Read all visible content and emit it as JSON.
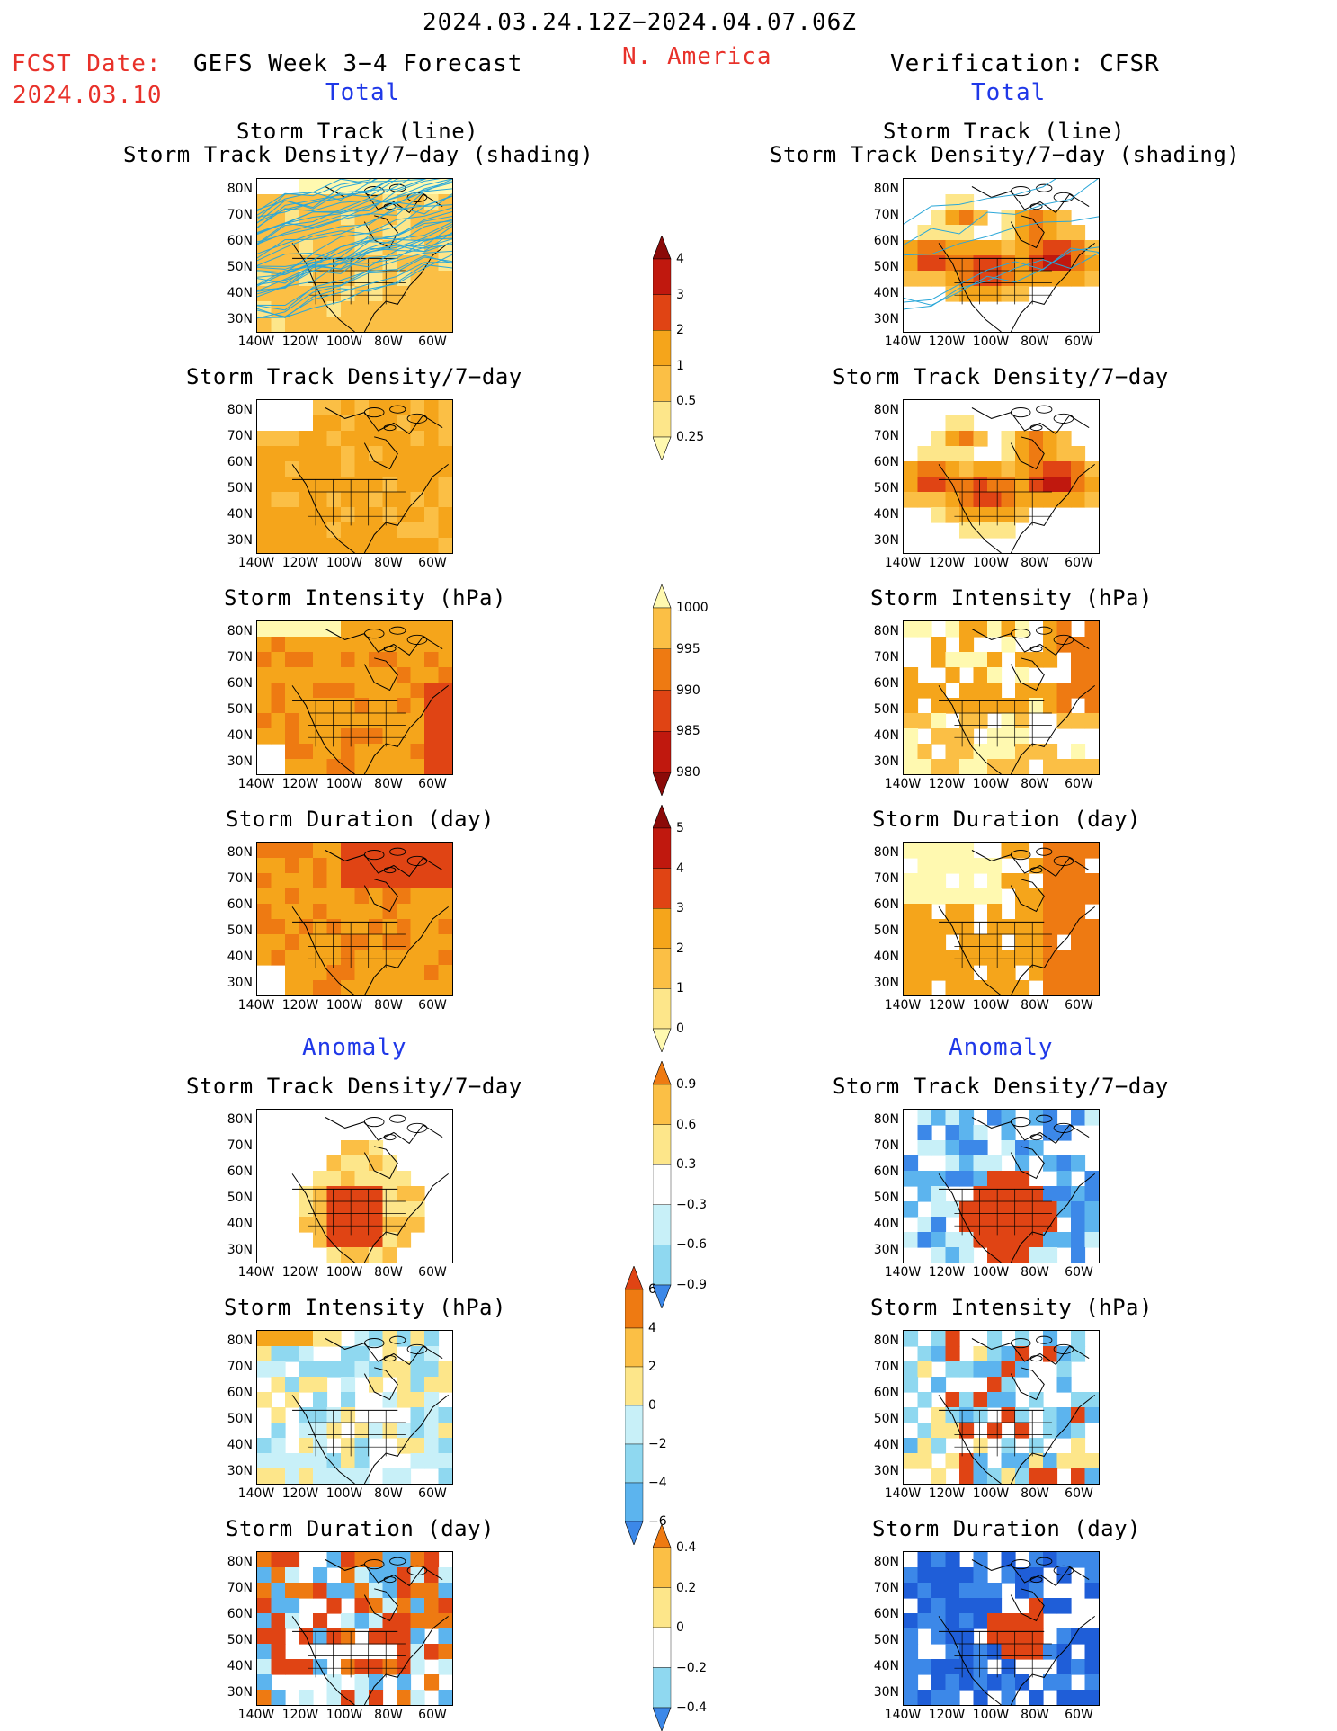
{
  "header": {
    "date_range": "2024.03.24.12Z−2024.04.07.06Z",
    "fcst_label": "FCST Date:",
    "fcst_date": "2024.03.10",
    "left_title": "GEFS Week 3−4 Forecast",
    "region": "N. America",
    "right_title": "Verification: CFSR",
    "total_left": "Total",
    "total_right": "Total",
    "anomaly_left": "Anomaly",
    "anomaly_right": "Anomaly"
  },
  "panels": {
    "track_line": "Storm Track (line)",
    "track_density_shading": "Storm Track Density/7−day (shading)",
    "track_density": "Storm Track Density/7−day",
    "intensity": "Storm Intensity (hPa)",
    "duration": "Storm Duration (day)"
  },
  "axes": {
    "lat_ticks": [
      "80N",
      "70N",
      "60N",
      "50N",
      "40N",
      "30N"
    ],
    "lon_ticks": [
      "140W",
      "120W",
      "100W",
      "80W",
      "60W"
    ]
  },
  "colorbars": {
    "density_total": [
      "4",
      "3",
      "2",
      "1",
      "0.5",
      "0.25"
    ],
    "intensity_total": [
      "1000",
      "995",
      "990",
      "985",
      "980"
    ],
    "duration_total": [
      "5",
      "4",
      "3",
      "2",
      "1",
      "0"
    ],
    "density_anom": [
      "0.9",
      "0.6",
      "0.3",
      "−0.3",
      "−0.6",
      "−0.9"
    ],
    "intensity_anom": [
      "6",
      "4",
      "2",
      "0",
      "−2",
      "−4",
      "−6"
    ],
    "duration_anom": [
      "0.4",
      "0.2",
      "0",
      "−0.2",
      "−0.4"
    ]
  },
  "colors": {
    "warm": [
      "#fff9b0",
      "#fde68a",
      "#fbbf45",
      "#f5a51b",
      "#ee7a12",
      "#e04414",
      "#c0180e",
      "#8b0a08"
    ],
    "cool": [
      "#c8f0f8",
      "#8fd8f0",
      "#5cb4ee",
      "#3c88e8",
      "#1f5ed8"
    ],
    "track_line": "#2aa7d8"
  }
}
